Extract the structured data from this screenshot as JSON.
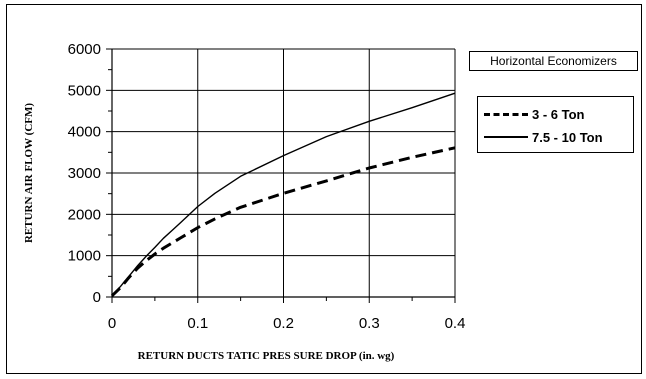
{
  "chart_data": {
    "type": "line",
    "title": "",
    "xlabel": "RETURN DUCTS TATIC PRES SURE DROP (in. wg)",
    "ylabel": "RETURN AIR FLOW (CFM)",
    "xlim": [
      0,
      0.4
    ],
    "ylim": [
      0,
      6000
    ],
    "x_ticks": [
      "0",
      "0.1",
      "0.2",
      "0.3",
      "0.4"
    ],
    "y_ticks": [
      "0",
      "1000",
      "2000",
      "3000",
      "4000",
      "5000",
      "6000"
    ],
    "grid": true,
    "legend_title": "Horizontal Economizers",
    "legend_position": "right",
    "series": [
      {
        "name": "3 - 6 Ton",
        "style": "dashed",
        "color": "#000000",
        "x": [
          0,
          0.01,
          0.02,
          0.03,
          0.04,
          0.05,
          0.06,
          0.08,
          0.1,
          0.12,
          0.15,
          0.2,
          0.25,
          0.3,
          0.35,
          0.4
        ],
        "y": [
          30,
          230,
          480,
          700,
          880,
          1040,
          1180,
          1430,
          1680,
          1890,
          2170,
          2510,
          2810,
          3120,
          3380,
          3610
        ]
      },
      {
        "name": "7.5 - 10 Ton",
        "style": "solid",
        "color": "#000000",
        "x": [
          0,
          0.01,
          0.02,
          0.03,
          0.04,
          0.05,
          0.06,
          0.07,
          0.08,
          0.1,
          0.12,
          0.15,
          0.2,
          0.25,
          0.3,
          0.35,
          0.4
        ],
        "y": [
          30,
          260,
          510,
          760,
          990,
          1200,
          1420,
          1610,
          1800,
          2190,
          2510,
          2920,
          3420,
          3880,
          4250,
          4580,
          4930
        ]
      }
    ]
  }
}
